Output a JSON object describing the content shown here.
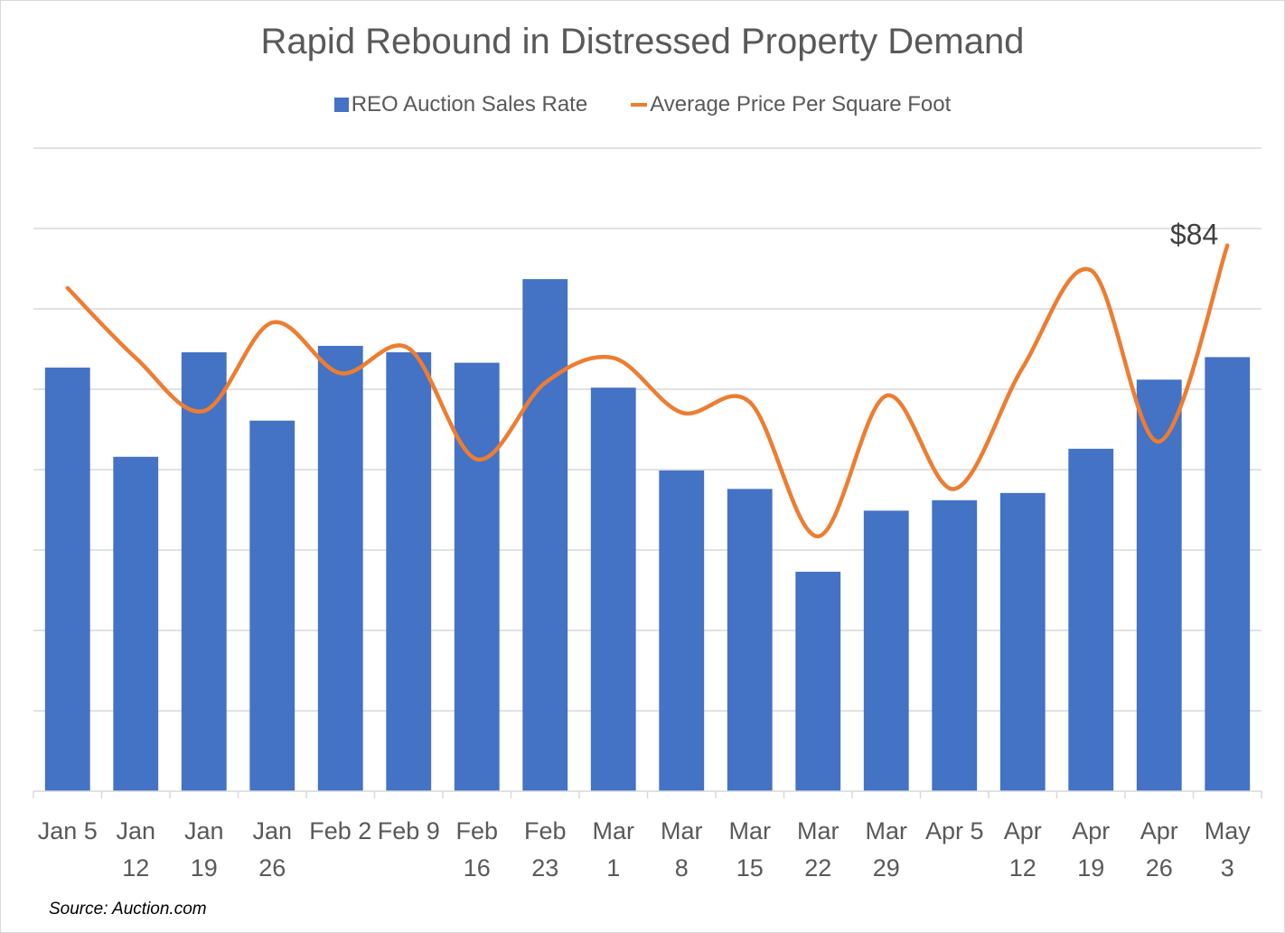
{
  "chart_data": {
    "type": "bar+line",
    "title": "Rapid Rebound in Distressed Property Demand",
    "categories": [
      [
        "Jan 5"
      ],
      [
        "Jan",
        "12"
      ],
      [
        "Jan",
        "19"
      ],
      [
        "Jan",
        "26"
      ],
      [
        "Feb 2"
      ],
      [
        "Feb 9"
      ],
      [
        "Feb",
        "16"
      ],
      [
        "Feb",
        "23"
      ],
      [
        "Mar",
        "1"
      ],
      [
        "Mar",
        "8"
      ],
      [
        "Mar",
        "15"
      ],
      [
        "Mar",
        "22"
      ],
      [
        "Mar",
        "29"
      ],
      [
        "Apr 5"
      ],
      [
        "Apr",
        "12"
      ],
      [
        "Apr",
        "19"
      ],
      [
        "Apr",
        "26"
      ],
      [
        "May",
        "3"
      ]
    ],
    "series": [
      {
        "name": "REO Auction Sales Rate",
        "type": "bar",
        "color": "#4472c4",
        "values": [
          5.27,
          4.16,
          5.46,
          4.61,
          5.54,
          5.46,
          5.33,
          6.37,
          5.02,
          3.99,
          3.76,
          2.73,
          3.49,
          3.62,
          3.71,
          4.26,
          5.12,
          5.4
        ]
      },
      {
        "name": "Average Price Per Square Foot",
        "type": "line",
        "smooth": true,
        "color": "#ed7d31",
        "values": [
          6.26,
          5.39,
          4.73,
          5.83,
          5.2,
          5.51,
          4.13,
          5.08,
          5.39,
          4.71,
          4.84,
          3.17,
          4.92,
          3.76,
          5.27,
          6.48,
          4.35,
          6.79
        ],
        "annotation": {
          "index": 17,
          "text": "$84"
        }
      }
    ],
    "xlabel": "",
    "ylabel": "",
    "ylim": [
      0,
      8
    ],
    "y_units_note": "relative gridline units (no y-axis labels shown)",
    "gridlines": 8,
    "grid": true,
    "legend_position": "top",
    "legend": [
      "REO Auction Sales Rate",
      "Average Price Per Square Foot"
    ]
  },
  "source": "Source: Auction.com"
}
